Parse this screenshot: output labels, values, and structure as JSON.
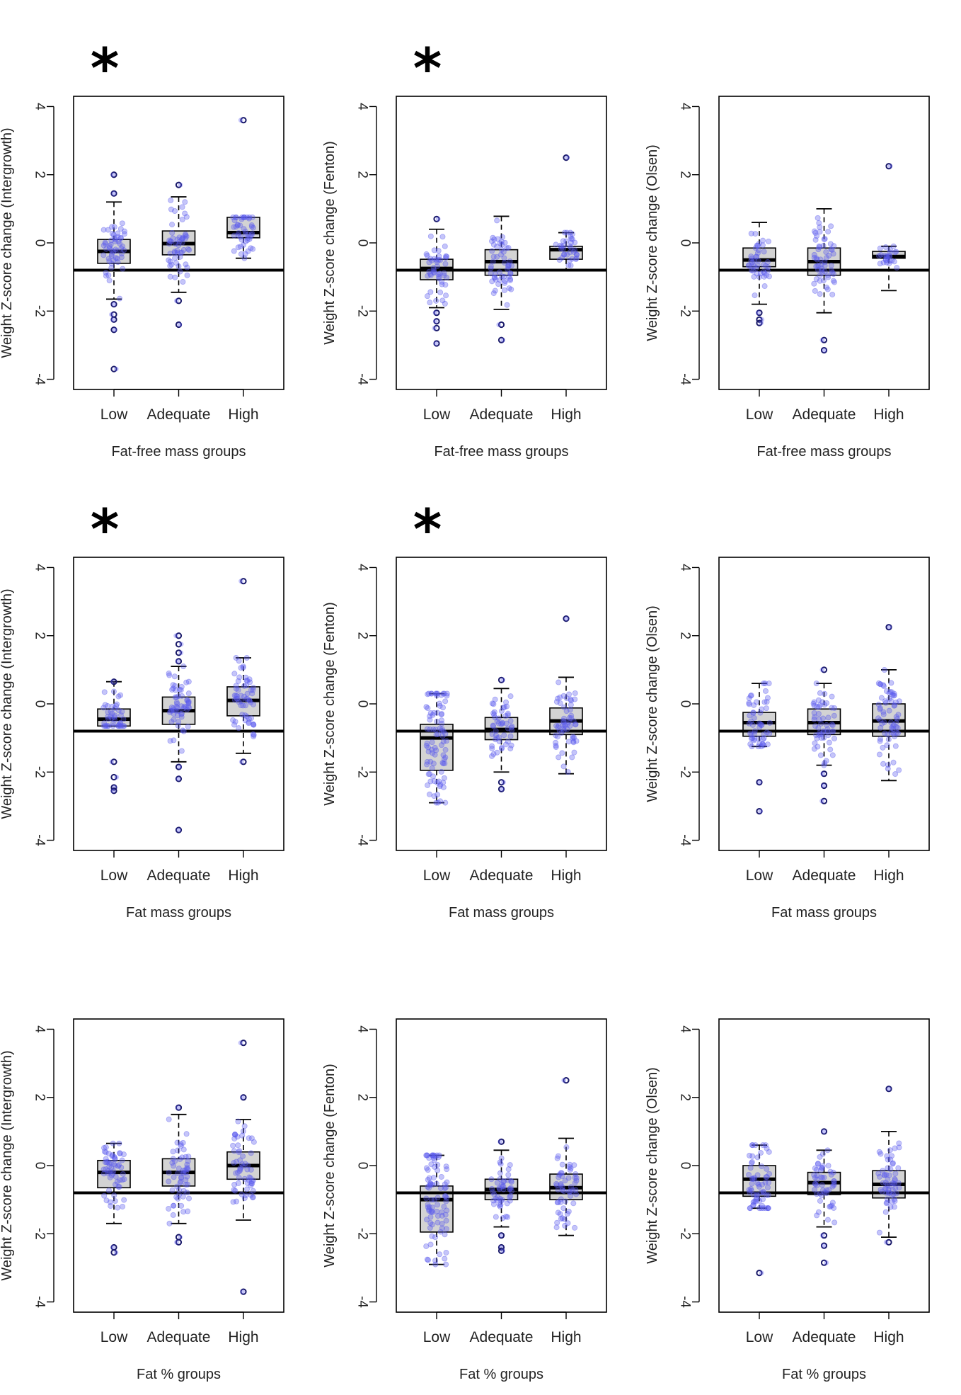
{
  "figure": {
    "y_tick_labels": [
      "4",
      "2",
      "0",
      "-2",
      "-4"
    ],
    "category_labels": [
      "Low",
      "Adequate",
      "High"
    ],
    "significance_marker": "*",
    "reference_line_y": -0.8
  },
  "colors": {
    "box_fill": "#d3d3d3",
    "point": "#5a5aee",
    "outlier_stroke": "#1a1a6a",
    "median": "#000000",
    "reference_line": "#000000"
  },
  "chart_data": [
    {
      "type": "box",
      "ylabel": "Weight Z-score change (Intergrowth)",
      "xlabel": "Fat-free mass groups",
      "categories": [
        "Low",
        "Adequate",
        "High"
      ],
      "ylim": [
        -4.3,
        4.3
      ],
      "significant": true,
      "boxes": [
        {
          "q1": -0.6,
          "median": -0.25,
          "q3": 0.1,
          "whisker_low": -1.65,
          "whisker_high": 1.2,
          "outliers": [
            2.0,
            1.45,
            -1.8,
            -2.1,
            -2.25,
            -2.55,
            -3.7
          ]
        },
        {
          "q1": -0.35,
          "median": -0.02,
          "q3": 0.35,
          "whisker_low": -1.45,
          "whisker_high": 1.35,
          "outliers": [
            1.7,
            -1.7,
            -2.4
          ]
        },
        {
          "q1": 0.15,
          "median": 0.3,
          "q3": 0.75,
          "whisker_low": -0.45,
          "whisker_high": 0.75,
          "outliers": [
            3.6
          ]
        }
      ]
    },
    {
      "type": "box",
      "ylabel": "Weight Z-score change (Fenton)",
      "xlabel": "Fat-free mass groups",
      "categories": [
        "Low",
        "Adequate",
        "High"
      ],
      "ylim": [
        -4.3,
        4.3
      ],
      "significant": true,
      "boxes": [
        {
          "q1": -1.08,
          "median": -0.75,
          "q3": -0.48,
          "whisker_low": -1.9,
          "whisker_high": 0.4,
          "outliers": [
            0.7,
            -2.05,
            -2.3,
            -2.5,
            -2.95
          ]
        },
        {
          "q1": -0.95,
          "median": -0.55,
          "q3": -0.2,
          "whisker_low": -1.95,
          "whisker_high": 0.78,
          "outliers": [
            -2.4,
            -2.85
          ]
        },
        {
          "q1": -0.48,
          "median": -0.2,
          "q3": -0.1,
          "whisker_low": -0.8,
          "whisker_high": 0.3,
          "outliers": [
            2.5
          ]
        }
      ]
    },
    {
      "type": "box",
      "ylabel": "Weight Z-score change (Olsen)",
      "xlabel": "Fat-free mass groups",
      "categories": [
        "Low",
        "Adequate",
        "High"
      ],
      "ylim": [
        -4.3,
        4.3
      ],
      "significant": false,
      "boxes": [
        {
          "q1": -0.7,
          "median": -0.5,
          "q3": -0.15,
          "whisker_low": -1.8,
          "whisker_high": 0.6,
          "outliers": [
            -2.05,
            -2.25,
            -2.35
          ]
        },
        {
          "q1": -0.95,
          "median": -0.55,
          "q3": -0.15,
          "whisker_low": -2.05,
          "whisker_high": 1.0,
          "outliers": [
            -2.85,
            -3.15
          ]
        },
        {
          "q1": -0.45,
          "median": -0.4,
          "q3": -0.25,
          "whisker_low": -1.4,
          "whisker_high": -0.1,
          "outliers": [
            2.25
          ]
        }
      ]
    },
    {
      "type": "box",
      "ylabel": "Weight Z-score change (Intergrowth)",
      "xlabel": "Fat mass groups",
      "categories": [
        "Low",
        "Adequate",
        "High"
      ],
      "ylim": [
        -4.3,
        4.3
      ],
      "significant": true,
      "boxes": [
        {
          "q1": -0.65,
          "median": -0.45,
          "q3": -0.15,
          "whisker_low": -0.65,
          "whisker_high": 0.65,
          "outliers": [
            0.65,
            -1.7,
            -2.15,
            -2.45,
            -2.55
          ]
        },
        {
          "q1": -0.6,
          "median": -0.2,
          "q3": 0.2,
          "whisker_low": -1.7,
          "whisker_high": 1.1,
          "outliers": [
            2.0,
            1.75,
            1.5,
            1.25,
            -1.85,
            -2.2,
            -3.7
          ]
        },
        {
          "q1": -0.35,
          "median": 0.1,
          "q3": 0.5,
          "whisker_low": -1.45,
          "whisker_high": 1.35,
          "outliers": [
            3.6,
            -1.7
          ]
        }
      ]
    },
    {
      "type": "box",
      "ylabel": "Weight Z-score change (Fenton)",
      "xlabel": "Fat mass groups",
      "categories": [
        "Low",
        "Adequate",
        "High"
      ],
      "ylim": [
        -4.3,
        4.3
      ],
      "significant": true,
      "boxes": [
        {
          "q1": -1.95,
          "median": -1.0,
          "q3": -0.6,
          "whisker_low": -2.9,
          "whisker_high": 0.3,
          "outliers": []
        },
        {
          "q1": -1.05,
          "median": -0.75,
          "q3": -0.4,
          "whisker_low": -2.0,
          "whisker_high": 0.45,
          "outliers": [
            0.7,
            -2.3,
            -2.5
          ]
        },
        {
          "q1": -0.9,
          "median": -0.5,
          "q3": -0.12,
          "whisker_low": -2.05,
          "whisker_high": 0.78,
          "outliers": [
            2.5
          ]
        }
      ]
    },
    {
      "type": "box",
      "ylabel": "Weight Z-score change (Olsen)",
      "xlabel": "Fat mass groups",
      "categories": [
        "Low",
        "Adequate",
        "High"
      ],
      "ylim": [
        -4.3,
        4.3
      ],
      "significant": false,
      "boxes": [
        {
          "q1": -0.95,
          "median": -0.55,
          "q3": -0.25,
          "whisker_low": -1.25,
          "whisker_high": 0.6,
          "outliers": [
            -2.3,
            -3.15
          ]
        },
        {
          "q1": -0.9,
          "median": -0.55,
          "q3": -0.15,
          "whisker_low": -1.8,
          "whisker_high": 0.6,
          "outliers": [
            1.0,
            -2.05,
            -2.4,
            -2.85
          ]
        },
        {
          "q1": -0.95,
          "median": -0.5,
          "q3": 0.0,
          "whisker_low": -2.25,
          "whisker_high": 1.0,
          "outliers": [
            2.25
          ]
        }
      ]
    },
    {
      "type": "box",
      "ylabel": "Weight Z-score change (Intergrowth)",
      "xlabel": "Fat % groups",
      "categories": [
        "Low",
        "Adequate",
        "High"
      ],
      "ylim": [
        -4.3,
        4.3
      ],
      "significant": false,
      "boxes": [
        {
          "q1": -0.65,
          "median": -0.2,
          "q3": 0.15,
          "whisker_low": -1.7,
          "whisker_high": 0.65,
          "outliers": [
            -2.4,
            -2.55
          ]
        },
        {
          "q1": -0.6,
          "median": -0.2,
          "q3": 0.2,
          "whisker_low": -1.7,
          "whisker_high": 1.5,
          "outliers": [
            1.7,
            -2.1,
            -2.25
          ]
        },
        {
          "q1": -0.4,
          "median": 0.0,
          "q3": 0.4,
          "whisker_low": -1.6,
          "whisker_high": 1.35,
          "outliers": [
            3.6,
            2.0,
            -3.7
          ]
        }
      ]
    },
    {
      "type": "box",
      "ylabel": "Weight Z-score change (Fenton)",
      "xlabel": "Fat % groups",
      "categories": [
        "Low",
        "Adequate",
        "High"
      ],
      "ylim": [
        -4.3,
        4.3
      ],
      "significant": false,
      "boxes": [
        {
          "q1": -1.95,
          "median": -1.0,
          "q3": -0.6,
          "whisker_low": -2.9,
          "whisker_high": 0.3,
          "outliers": []
        },
        {
          "q1": -1.0,
          "median": -0.7,
          "q3": -0.4,
          "whisker_low": -1.8,
          "whisker_high": 0.45,
          "outliers": [
            0.7,
            -2.05,
            -2.4,
            -2.5
          ]
        },
        {
          "q1": -1.0,
          "median": -0.65,
          "q3": -0.25,
          "whisker_low": -2.05,
          "whisker_high": 0.8,
          "outliers": [
            2.5
          ]
        }
      ]
    },
    {
      "type": "box",
      "ylabel": "Weight Z-score change (Olsen)",
      "xlabel": "Fat % groups",
      "categories": [
        "Low",
        "Adequate",
        "High"
      ],
      "ylim": [
        -4.3,
        4.3
      ],
      "significant": false,
      "boxes": [
        {
          "q1": -0.9,
          "median": -0.4,
          "q3": 0.0,
          "whisker_low": -1.25,
          "whisker_high": 0.6,
          "outliers": [
            -3.15
          ]
        },
        {
          "q1": -0.85,
          "median": -0.5,
          "q3": -0.2,
          "whisker_low": -1.8,
          "whisker_high": 0.45,
          "outliers": [
            1.0,
            -2.05,
            -2.35,
            -2.85
          ]
        },
        {
          "q1": -0.95,
          "median": -0.55,
          "q3": -0.15,
          "whisker_low": -2.1,
          "whisker_high": 1.0,
          "outliers": [
            2.25,
            -2.25
          ]
        }
      ]
    }
  ]
}
